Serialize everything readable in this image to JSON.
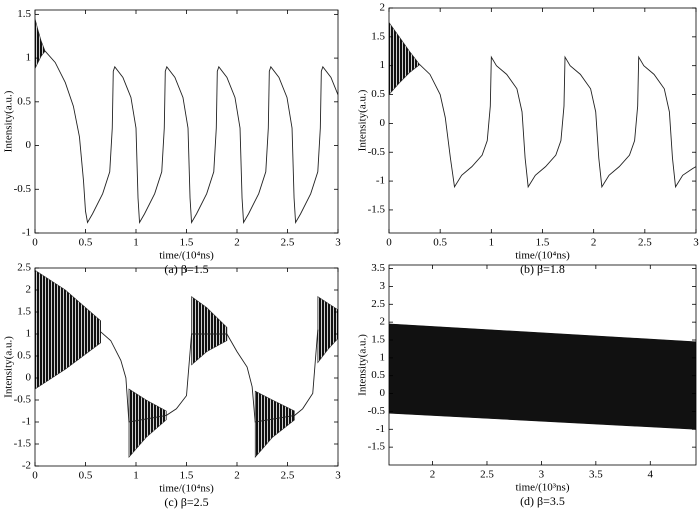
{
  "chart_data": [
    {
      "type": "line",
      "caption": "(a) β=1.5",
      "xlabel": "time/(10⁴ns)",
      "ylabel": "Intensity(a.u.)",
      "xlim": [
        0,
        3
      ],
      "ylim": [
        -1,
        1.55
      ],
      "xticks": [
        0,
        0.5,
        1,
        1.5,
        2,
        2.5,
        3
      ],
      "yticks": [
        -1,
        -0.5,
        0,
        0.5,
        1,
        1.5
      ],
      "color": "#222222",
      "x": [
        0.1,
        0.2,
        0.3,
        0.38,
        0.44,
        0.48,
        0.5,
        0.52,
        0.57,
        0.67,
        0.74,
        0.765,
        0.775,
        0.79,
        0.87,
        0.95,
        1.0,
        1.02,
        1.035,
        1.085,
        1.185,
        1.255,
        1.28,
        1.29,
        1.305,
        1.385,
        1.465,
        1.515,
        1.535,
        1.55,
        1.6,
        1.7,
        1.77,
        1.795,
        1.805,
        1.82,
        1.9,
        1.98,
        2.03,
        2.05,
        2.065,
        2.115,
        2.215,
        2.285,
        2.31,
        2.32,
        2.335,
        2.415,
        2.495,
        2.545,
        2.565,
        2.58,
        2.63,
        2.73,
        2.8,
        2.825,
        2.835,
        2.85,
        2.93,
        3.0
      ],
      "values": [
        1.08,
        0.95,
        0.72,
        0.45,
        0.1,
        -0.4,
        -0.75,
        -0.88,
        -0.78,
        -0.55,
        -0.3,
        0.2,
        0.85,
        0.9,
        0.78,
        0.55,
        0.2,
        -0.6,
        -0.88,
        -0.78,
        -0.55,
        -0.3,
        0.2,
        0.85,
        0.9,
        0.78,
        0.55,
        0.2,
        -0.6,
        -0.88,
        -0.78,
        -0.55,
        -0.3,
        0.2,
        0.85,
        0.9,
        0.78,
        0.55,
        0.2,
        -0.6,
        -0.88,
        -0.78,
        -0.55,
        -0.3,
        0.2,
        0.85,
        0.9,
        0.78,
        0.55,
        0.2,
        -0.6,
        -0.88,
        -0.78,
        -0.55,
        -0.3,
        0.2,
        0.85,
        0.9,
        0.78,
        0.58
      ],
      "bands": [
        {
          "x": [
            0,
            0.03,
            0.06,
            0.1
          ],
          "upper": [
            1.45,
            1.32,
            1.2,
            1.08
          ],
          "lower": [
            0.88,
            0.95,
            1.02,
            1.08
          ]
        }
      ]
    },
    {
      "type": "line",
      "caption": "(b) β=1.8",
      "xlabel": "time/(10⁴ns)",
      "ylabel": "Intensity(a.u.)",
      "xlim": [
        0,
        3
      ],
      "ylim": [
        -1.9,
        2
      ],
      "xticks": [
        0,
        0.5,
        1,
        1.5,
        2,
        2.5,
        3
      ],
      "yticks": [
        -1.5,
        -1,
        -0.5,
        0,
        0.5,
        1,
        1.5,
        2
      ],
      "color": "#222222",
      "x": [
        0.3,
        0.4,
        0.5,
        0.55,
        0.6,
        0.64,
        0.71,
        0.81,
        0.91,
        0.96,
        0.99,
        1.0,
        1.05,
        1.15,
        1.25,
        1.3,
        1.33,
        1.36,
        1.43,
        1.53,
        1.63,
        1.68,
        1.71,
        1.72,
        1.77,
        1.87,
        1.97,
        2.02,
        2.05,
        2.08,
        2.15,
        2.25,
        2.35,
        2.4,
        2.43,
        2.44,
        2.49,
        2.59,
        2.69,
        2.74,
        2.77,
        2.8,
        2.87,
        2.97,
        3.0
      ],
      "values": [
        1.02,
        0.85,
        0.5,
        0.1,
        -0.6,
        -1.1,
        -0.9,
        -0.75,
        -0.55,
        -0.3,
        0.3,
        1.15,
        1.0,
        0.85,
        0.6,
        0.2,
        -0.6,
        -1.1,
        -0.9,
        -0.75,
        -0.55,
        -0.3,
        0.3,
        1.15,
        1.0,
        0.85,
        0.6,
        0.2,
        -0.6,
        -1.1,
        -0.9,
        -0.75,
        -0.55,
        -0.3,
        0.3,
        1.15,
        1.0,
        0.85,
        0.6,
        0.2,
        -0.6,
        -1.1,
        -0.9,
        -0.78,
        -0.75
      ],
      "bands": [
        {
          "x": [
            0,
            0.1,
            0.2,
            0.3
          ],
          "upper": [
            1.75,
            1.5,
            1.25,
            1.02
          ],
          "lower": [
            0.5,
            0.7,
            0.88,
            1.02
          ]
        }
      ]
    },
    {
      "type": "line",
      "caption": "(c) β=2.5",
      "xlabel": "time/(10⁴ns)",
      "ylabel": "Intensity(a.u.)",
      "xlim": [
        0,
        3
      ],
      "ylim": [
        -2,
        2.5
      ],
      "xticks": [
        0,
        0.5,
        1,
        1.5,
        2,
        2.5,
        3
      ],
      "yticks": [
        -2,
        -1.5,
        -1,
        -0.5,
        0,
        0.5,
        1,
        1.5,
        2,
        2.5
      ],
      "color": "#222222",
      "x": [
        0.65,
        0.75,
        0.85,
        0.9,
        0.93,
        1.3,
        1.4,
        1.5,
        1.55,
        1.9,
        2.0,
        2.1,
        2.15,
        2.18,
        2.57,
        2.65,
        2.75,
        2.8
      ],
      "values": [
        1.05,
        0.85,
        0.4,
        0.0,
        -1.0,
        -0.85,
        -0.7,
        -0.4,
        1.0,
        1.0,
        0.6,
        0.25,
        -0.2,
        -1.0,
        -0.85,
        -0.7,
        -0.35,
        1.1
      ],
      "bands": [
        {
          "x": [
            0,
            0.3,
            0.65
          ],
          "upper": [
            2.45,
            2.0,
            1.3
          ],
          "lower": [
            -0.25,
            0.2,
            0.8
          ]
        },
        {
          "x": [
            0.93,
            1.1,
            1.3
          ],
          "upper": [
            -0.25,
            -0.5,
            -0.75
          ],
          "lower": [
            -1.8,
            -1.35,
            -0.95
          ]
        },
        {
          "x": [
            1.55,
            1.7,
            1.9
          ],
          "upper": [
            1.85,
            1.6,
            1.15
          ],
          "lower": [
            0.3,
            0.6,
            0.85
          ]
        },
        {
          "x": [
            2.18,
            2.35,
            2.57
          ],
          "upper": [
            -0.3,
            -0.5,
            -0.75
          ],
          "lower": [
            -1.8,
            -1.35,
            -0.95
          ]
        },
        {
          "x": [
            2.8,
            2.9,
            3.0
          ],
          "upper": [
            1.85,
            1.7,
            1.55
          ],
          "lower": [
            0.35,
            0.65,
            0.9
          ]
        }
      ]
    },
    {
      "type": "line",
      "caption": "(d) β=3.5",
      "xlabel": "time/(10³ns)",
      "ylabel": "Intensity(a.u.)",
      "xlim": [
        1.6,
        4.42
      ],
      "ylim": [
        -2,
        3.6
      ],
      "xticks": [
        2,
        2.5,
        3,
        3.5,
        4
      ],
      "yticks": [
        -1.5,
        -1,
        -0.5,
        0,
        0.5,
        1,
        1.5,
        2,
        2.5,
        3,
        3.5
      ],
      "color": "#111111",
      "x": [],
      "values": [],
      "bands": [
        {
          "x": [
            1.6,
            4.42
          ],
          "upper": [
            1.95,
            1.45
          ],
          "lower": [
            -0.55,
            -1.0
          ]
        }
      ]
    }
  ]
}
